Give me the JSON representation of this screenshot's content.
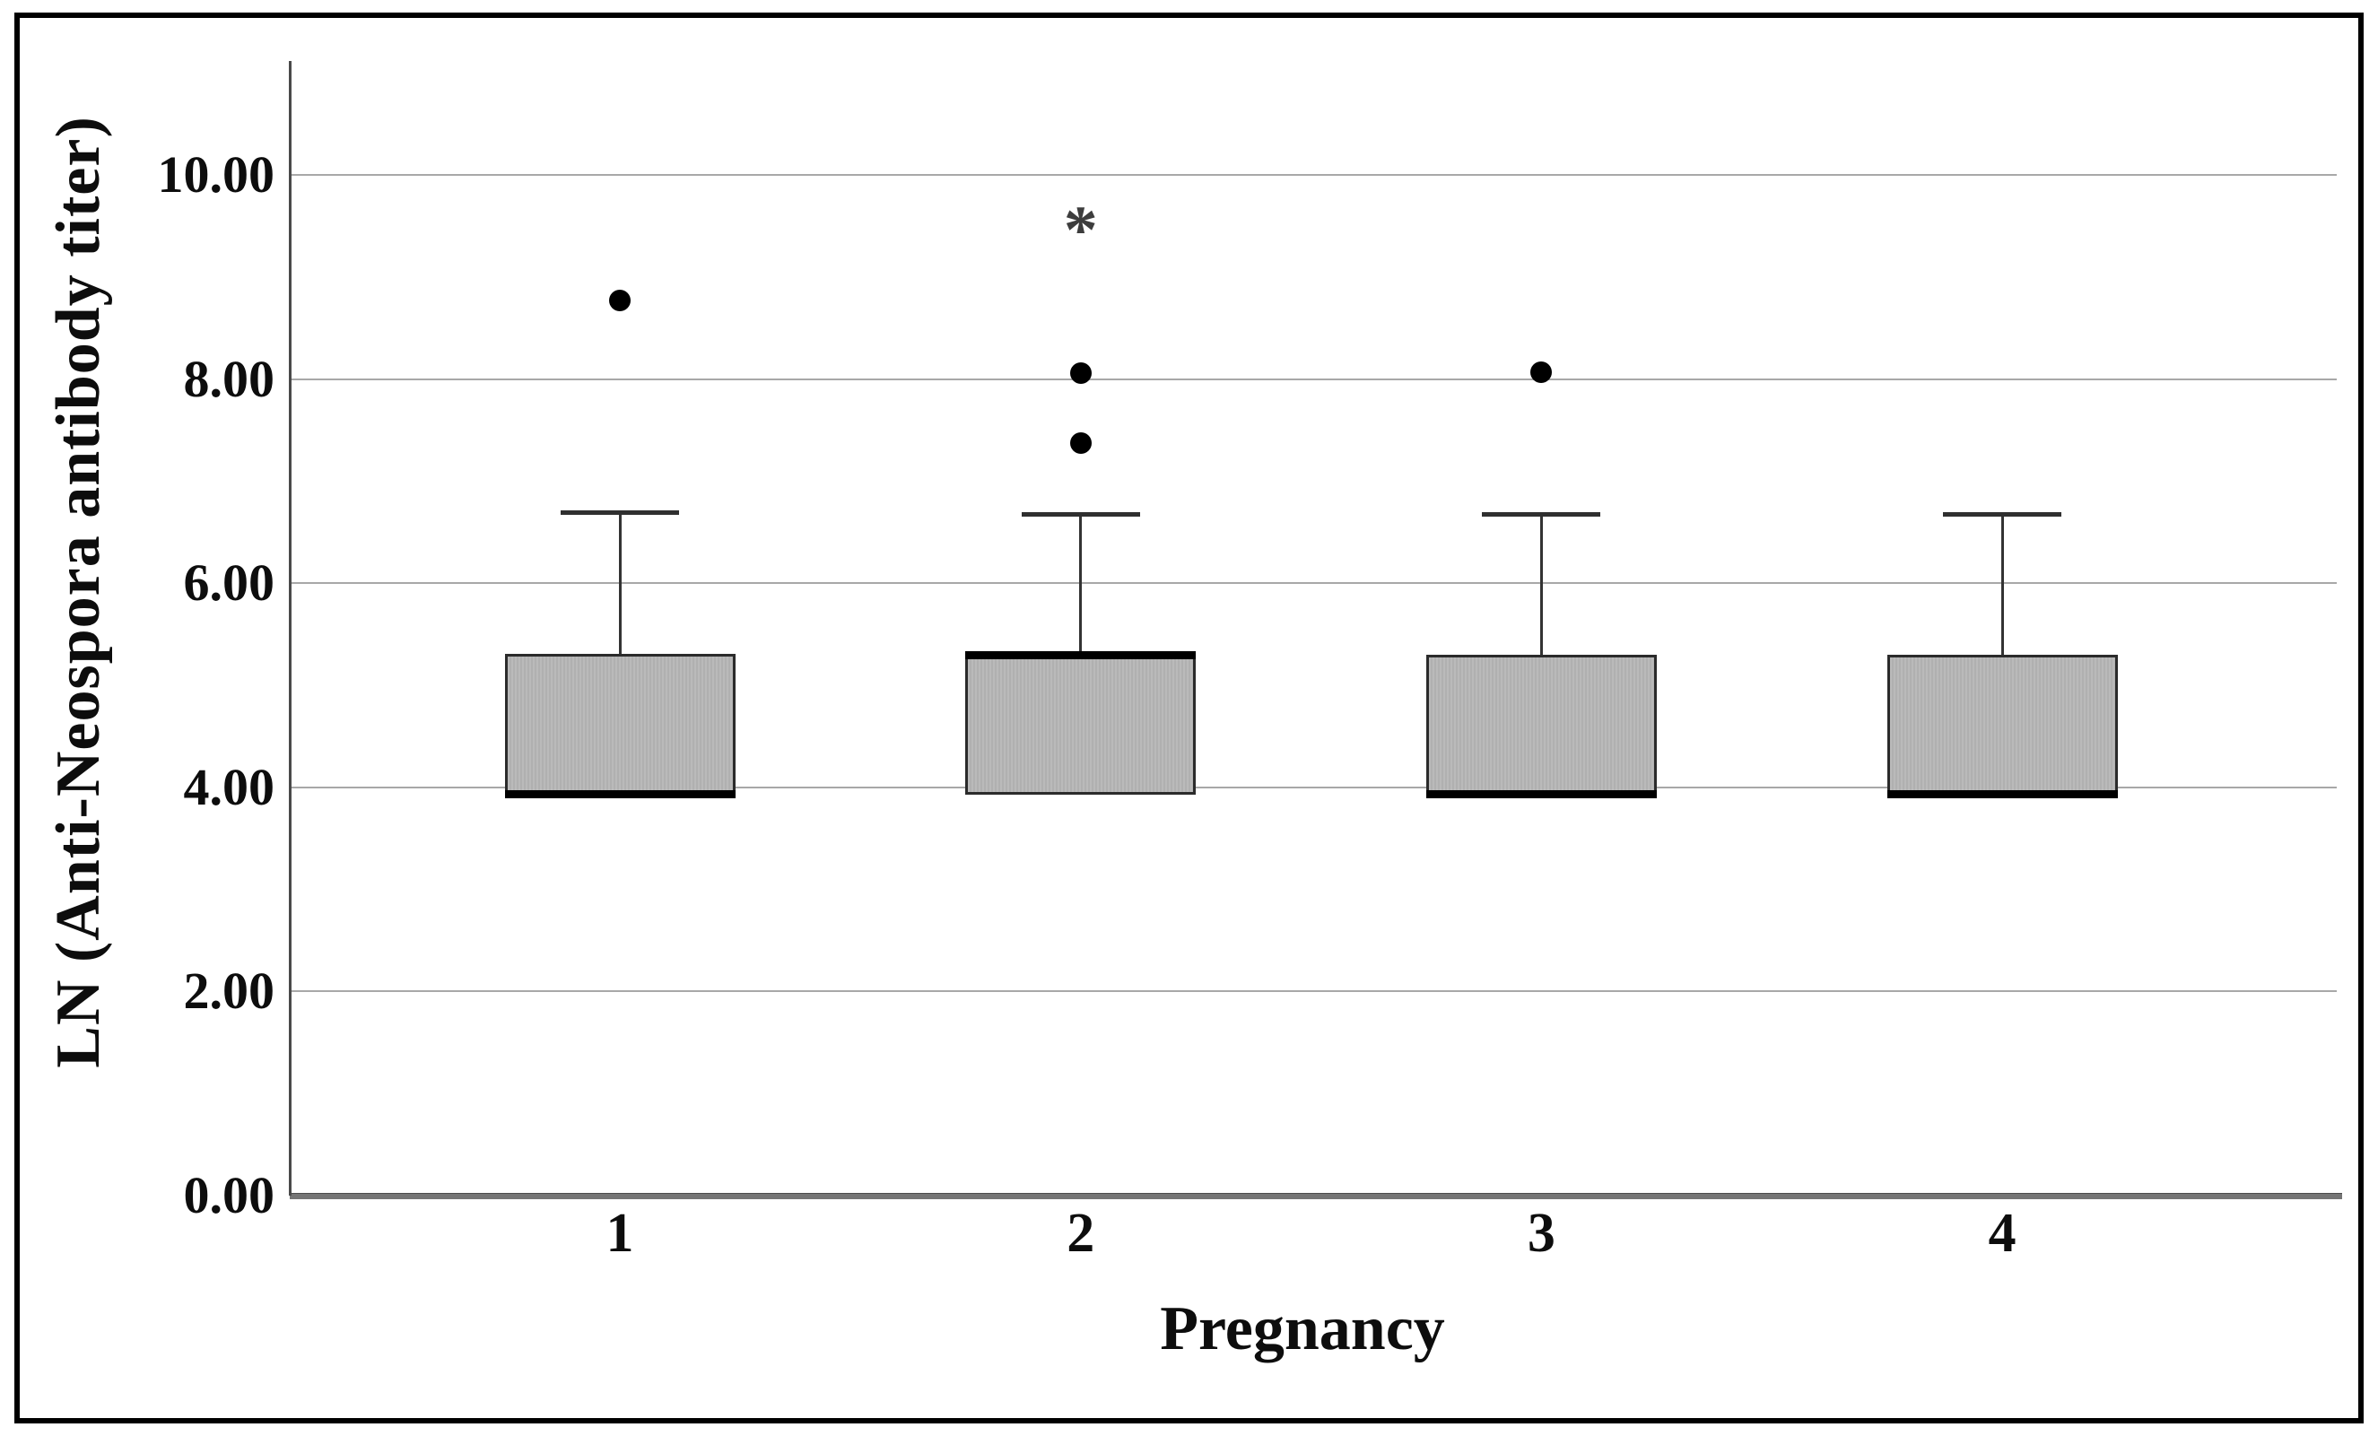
{
  "chart_data": {
    "type": "boxplot",
    "title": "",
    "xlabel": "Pregnancy",
    "ylabel": "LN (Anti-Neospora antibody titer)",
    "categories": [
      "1",
      "2",
      "3",
      "4"
    ],
    "ylim": [
      0,
      11.1
    ],
    "grid": "horizontal-gridlines",
    "legend": "none",
    "yticks": [
      {
        "value": 0,
        "label": "0.00"
      },
      {
        "value": 2,
        "label": "2.00"
      },
      {
        "value": 4,
        "label": "4.00"
      },
      {
        "value": 6,
        "label": "6.00"
      },
      {
        "value": 8,
        "label": "8.00"
      },
      {
        "value": 10,
        "label": "10.00"
      }
    ],
    "boxes": [
      {
        "category": "1",
        "q1": 3.93,
        "median": 3.93,
        "q3": 5.31,
        "whisker_low": null,
        "whisker_high": 6.7,
        "median_position": "bottom",
        "outliers": [
          8.77
        ],
        "extremes": []
      },
      {
        "category": "2",
        "q1": 3.93,
        "median": 5.29,
        "q3": 5.29,
        "whisker_low": null,
        "whisker_high": 6.68,
        "median_position": "top",
        "outliers": [
          8.06,
          7.37
        ],
        "extremes": [
          9.45
        ]
      },
      {
        "category": "3",
        "q1": 3.93,
        "median": 3.93,
        "q3": 5.3,
        "whisker_low": null,
        "whisker_high": 6.68,
        "median_position": "bottom",
        "outliers": [
          8.07
        ],
        "extremes": []
      },
      {
        "category": "4",
        "q1": 3.93,
        "median": 3.93,
        "q3": 5.3,
        "whisker_low": null,
        "whisker_high": 6.68,
        "median_position": "bottom",
        "outliers": [],
        "extremes": []
      }
    ],
    "extreme_marker_glyph": "*",
    "colors": {
      "box_fill": "#b5b5b5",
      "box_border": "#2b2b2b",
      "median": "#000000",
      "whisker": "#333333",
      "gridline": "#a8a8a8",
      "baseline": "#757575",
      "axis_line": "#4a4a4a",
      "outlier": "#000000",
      "extreme_marker": "#3d3d3d",
      "text": "#0d0d0d",
      "frame": "#000000"
    }
  }
}
